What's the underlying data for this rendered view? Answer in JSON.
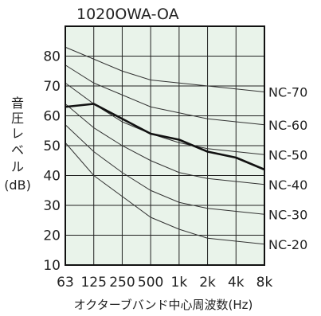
{
  "chart_data": {
    "type": "line",
    "title": "1020OWA-OA",
    "xlabel": "オクターブバンド中心周波数(Hz)",
    "ylabel": "音圧レベル(dB)",
    "ylabel_parts": [
      "音",
      "圧",
      "レ",
      "ベ",
      "ル",
      "(dB)"
    ],
    "categories": [
      "63",
      "125",
      "250",
      "500",
      "1k",
      "2k",
      "4k",
      "8k"
    ],
    "yticks": [
      10,
      20,
      30,
      40,
      50,
      60,
      70,
      80
    ],
    "ylim": [
      10,
      90
    ],
    "grid": true,
    "series": [
      {
        "name": "",
        "values": [
          63,
          64,
          59,
          54,
          52,
          48,
          46,
          42
        ],
        "highlight": true
      }
    ],
    "nc_curves": [
      {
        "name": "NC-70",
        "values": [
          83,
          79,
          75,
          72,
          71,
          70,
          69,
          68
        ]
      },
      {
        "name": "NC-60",
        "values": [
          77,
          71,
          67,
          63,
          61,
          59,
          58,
          57
        ]
      },
      {
        "name": "NC-50",
        "values": [
          71,
          64,
          58,
          54,
          51,
          49,
          48,
          47
        ]
      },
      {
        "name": "NC-40",
        "values": [
          64,
          56,
          50,
          45,
          41,
          39,
          38,
          37
        ]
      },
      {
        "name": "NC-30",
        "values": [
          57,
          48,
          41,
          35,
          31,
          29,
          28,
          27
        ]
      },
      {
        "name": "NC-20",
        "values": [
          51,
          40,
          33,
          26,
          22,
          19,
          18,
          17
        ]
      }
    ]
  }
}
